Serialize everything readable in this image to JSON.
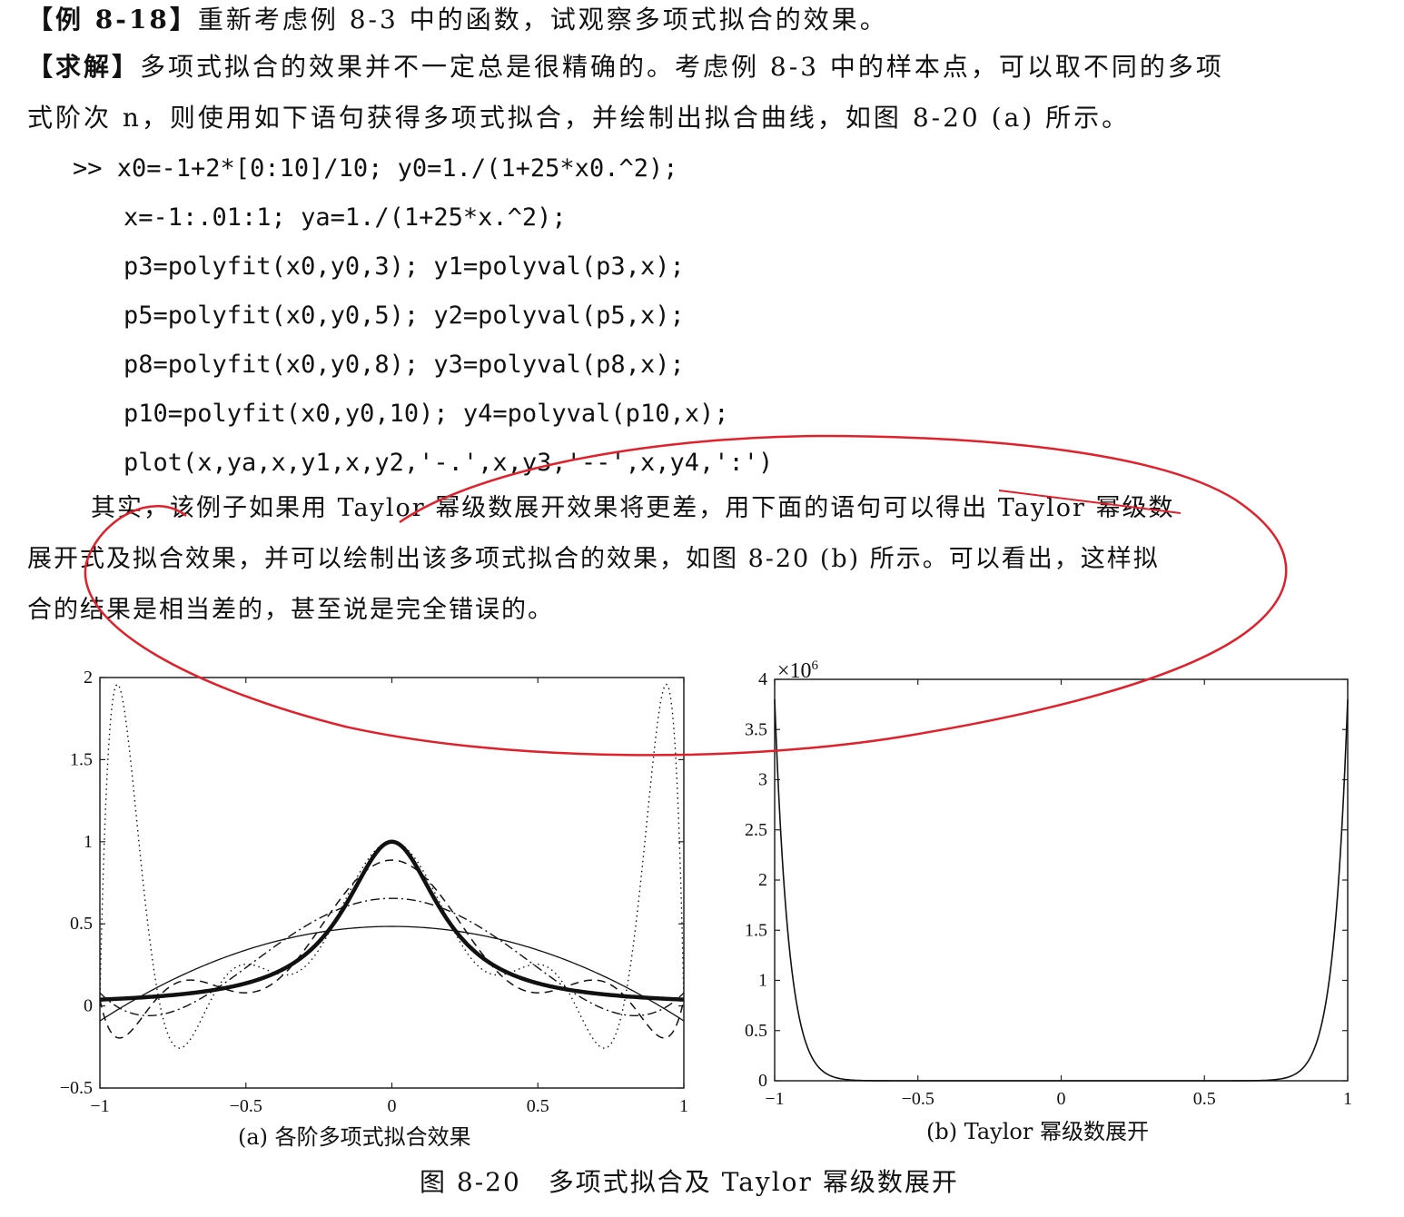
{
  "text": {
    "line1_head": "【例 8-18】",
    "line1_body": "重新考虑例 8-3 中的函数，试观察多项式拟合的效果。",
    "line2_head": "【求解】",
    "line2_body": "多项式拟合的效果并不一定总是很精确的。考虑例 8-3 中的样本点，可以取不同的多项",
    "line3": "式阶次 n，则使用如下语句获得多项式拟合，并绘制出拟合曲线，如图 8-20 (a) 所示。",
    "code": [
      ">> x0=-1+2*[0:10]/10; y0=1./(1+25*x0.^2);",
      "x=-1:.01:1; ya=1./(1+25*x.^2);",
      "p3=polyfit(x0,y0,3); y1=polyval(p3,x);",
      "p5=polyfit(x0,y0,5); y2=polyval(p5,x);",
      "p8=polyfit(x0,y0,8); y3=polyval(p8,x);",
      "p10=polyfit(x0,y0,10); y4=polyval(p10,x);",
      "plot(x,ya,x,y1,x,y2,'-.',x,y3,'--',x,y4,':')"
    ],
    "para2_line1": "其实，该例子如果用 Taylor 幂级数展开效果将更差，用下面的语句可以得出 Taylor 幂级数",
    "para2_line2": "展开式及拟合效果，并可以绘制出该多项式拟合的效果，如图 8-20 (b) 所示。可以看出，这样拟",
    "para2_line3": "合的结果是相当差的，甚至说是完全错误的。",
    "caption_a": "(a) 各阶多项式拟合效果",
    "caption_b": "(b) Taylor 幂级数展开",
    "figure_caption": "图 8-20　多项式拟合及 Taylor 幂级数展开"
  },
  "chart_data": [
    {
      "type": "line",
      "id": "a",
      "xlim": [
        -1,
        1
      ],
      "ylim": [
        -0.5,
        2
      ],
      "xticks": [
        "−1",
        "−0.5",
        "0",
        "0.5",
        "1"
      ],
      "yticks": [
        "−0.5",
        "0",
        "0.5",
        "1",
        "1.5",
        "2"
      ],
      "series": [
        {
          "style": "solid-thick",
          "function": "1/(1+25x^2)"
        },
        {
          "style": "solid",
          "fit_degree": 3
        },
        {
          "style": "dashdot",
          "fit_degree": 5
        },
        {
          "style": "dashed",
          "fit_degree": 8
        },
        {
          "style": "dotted",
          "fit_degree": 10
        }
      ],
      "samples_x": [
        -1,
        -0.8,
        -0.6,
        -0.4,
        -0.2,
        0,
        0.2,
        0.4,
        0.6,
        0.8,
        1
      ]
    },
    {
      "type": "line",
      "id": "b",
      "xlim": [
        -1,
        1
      ],
      "ylim": [
        0,
        4
      ],
      "y_exponent_label": "×10",
      "y_exponent_power": "6",
      "xticks": [
        "−1",
        "−0.5",
        "0",
        "0.5",
        "1"
      ],
      "yticks": [
        "0",
        "0.5",
        "1",
        "1.5",
        "2",
        "2.5",
        "3",
        "3.5",
        "4"
      ],
      "series": [
        {
          "style": "solid",
          "description": "Taylor series"
        }
      ]
    }
  ],
  "annotation": {
    "color": "#e0202a"
  }
}
